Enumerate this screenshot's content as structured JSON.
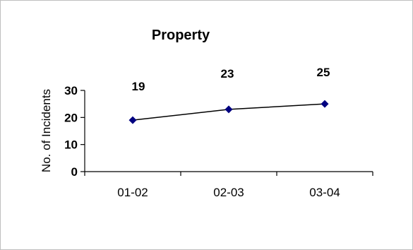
{
  "chart_data": {
    "type": "line",
    "title": "Property",
    "xlabel": "",
    "ylabel": "No. of Incidents",
    "categories": [
      "01-02",
      "02-03",
      "03-04"
    ],
    "values": [
      19,
      23,
      25
    ],
    "data_labels": [
      "19",
      "23",
      "25"
    ],
    "y_ticks": [
      "0",
      "10",
      "20",
      "30"
    ],
    "ylim": [
      0,
      30
    ],
    "grid": false,
    "legend": "none",
    "line_color": "#000000",
    "marker": "diamond",
    "marker_color": "#000080"
  }
}
